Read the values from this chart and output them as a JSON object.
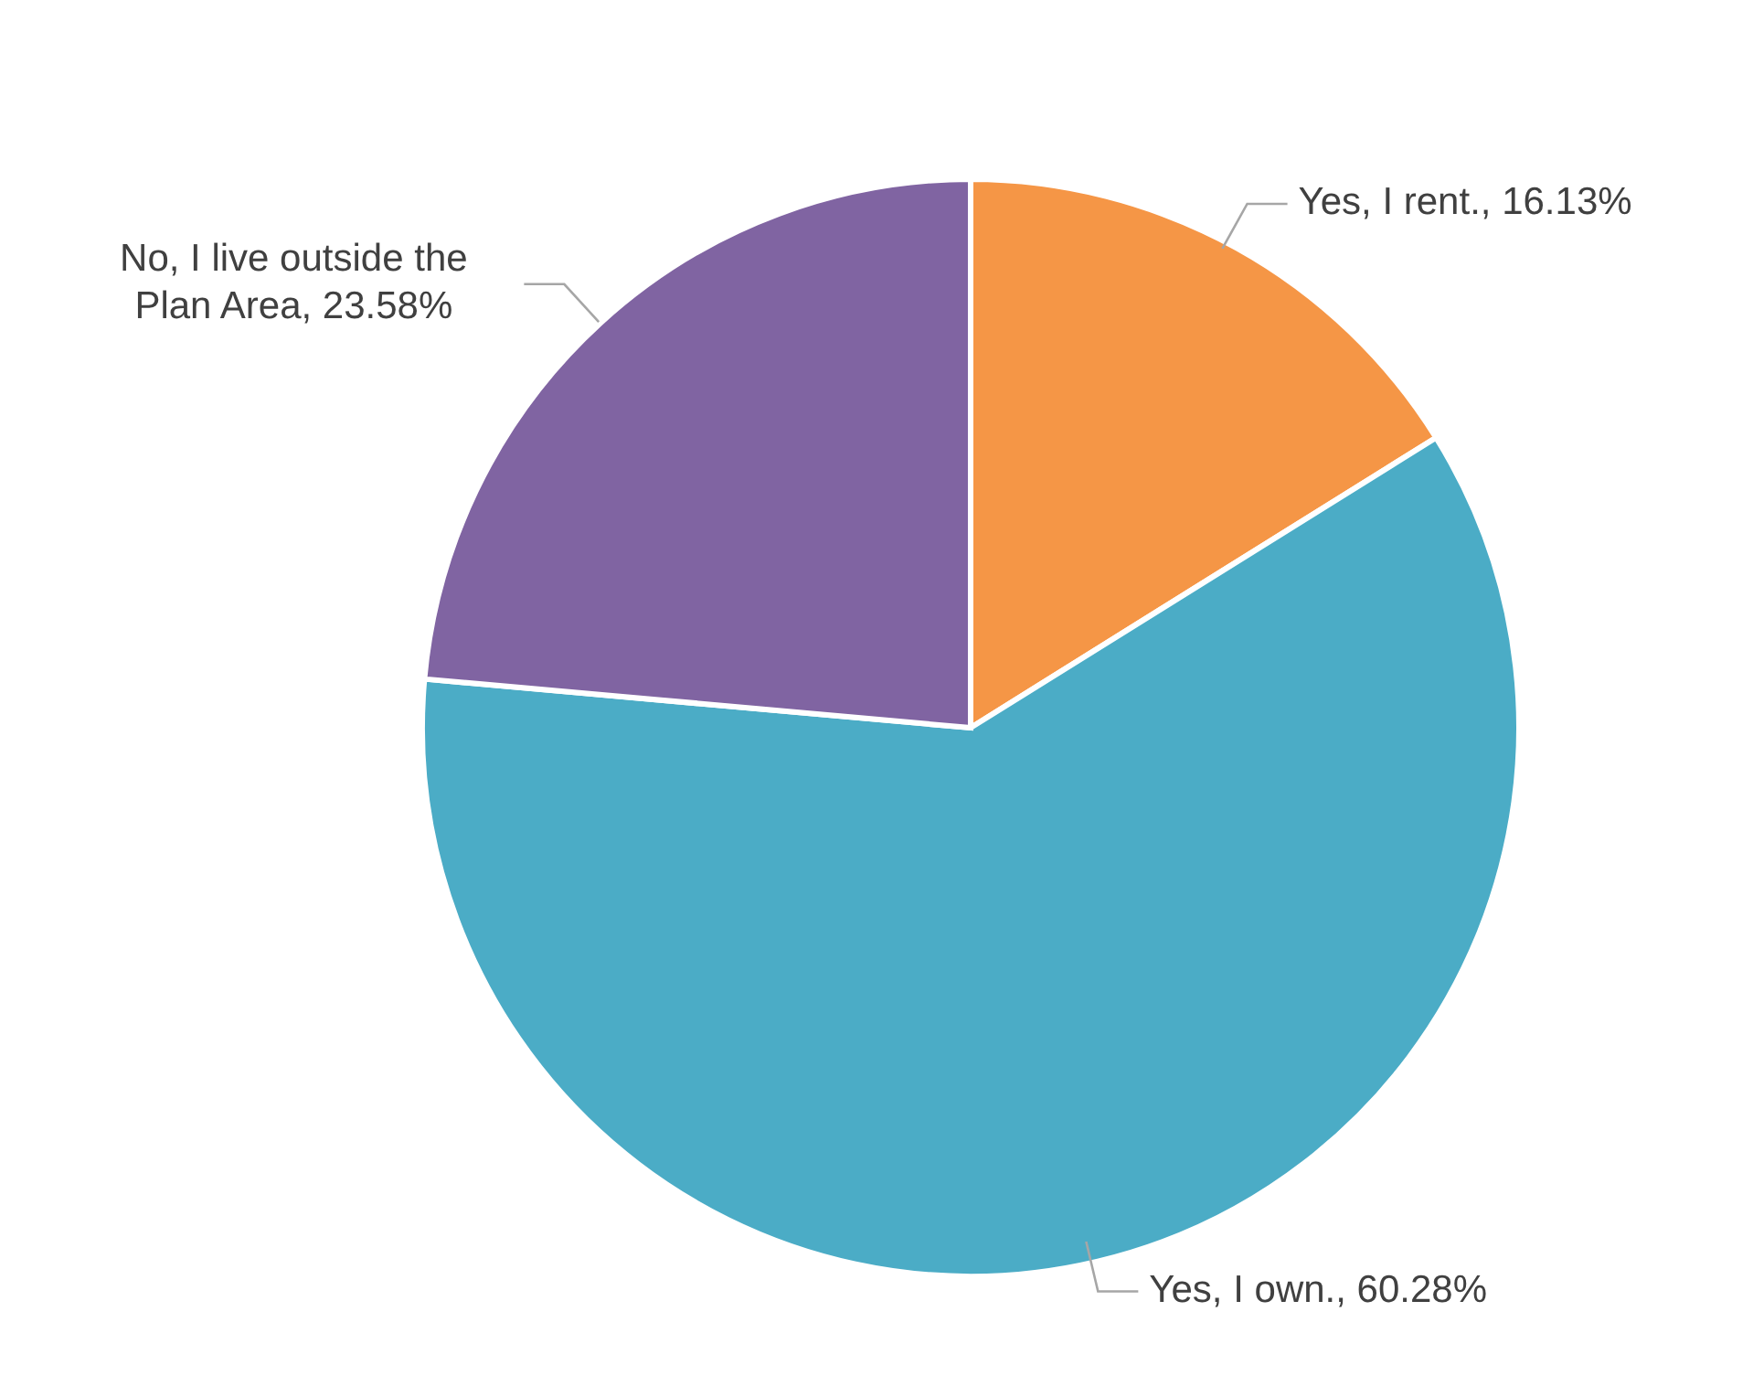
{
  "chart_data": {
    "type": "pie",
    "categories": [
      "Yes, I rent.",
      "Yes, I own.",
      "No, I live outside the Plan Area"
    ],
    "values": [
      16.13,
      60.28,
      23.58
    ],
    "value_labels": [
      "16.13%",
      "60.28%",
      "23.58%"
    ],
    "colors": [
      "#f59646",
      "#4bacc6",
      "#8064a2"
    ],
    "legend": false
  }
}
